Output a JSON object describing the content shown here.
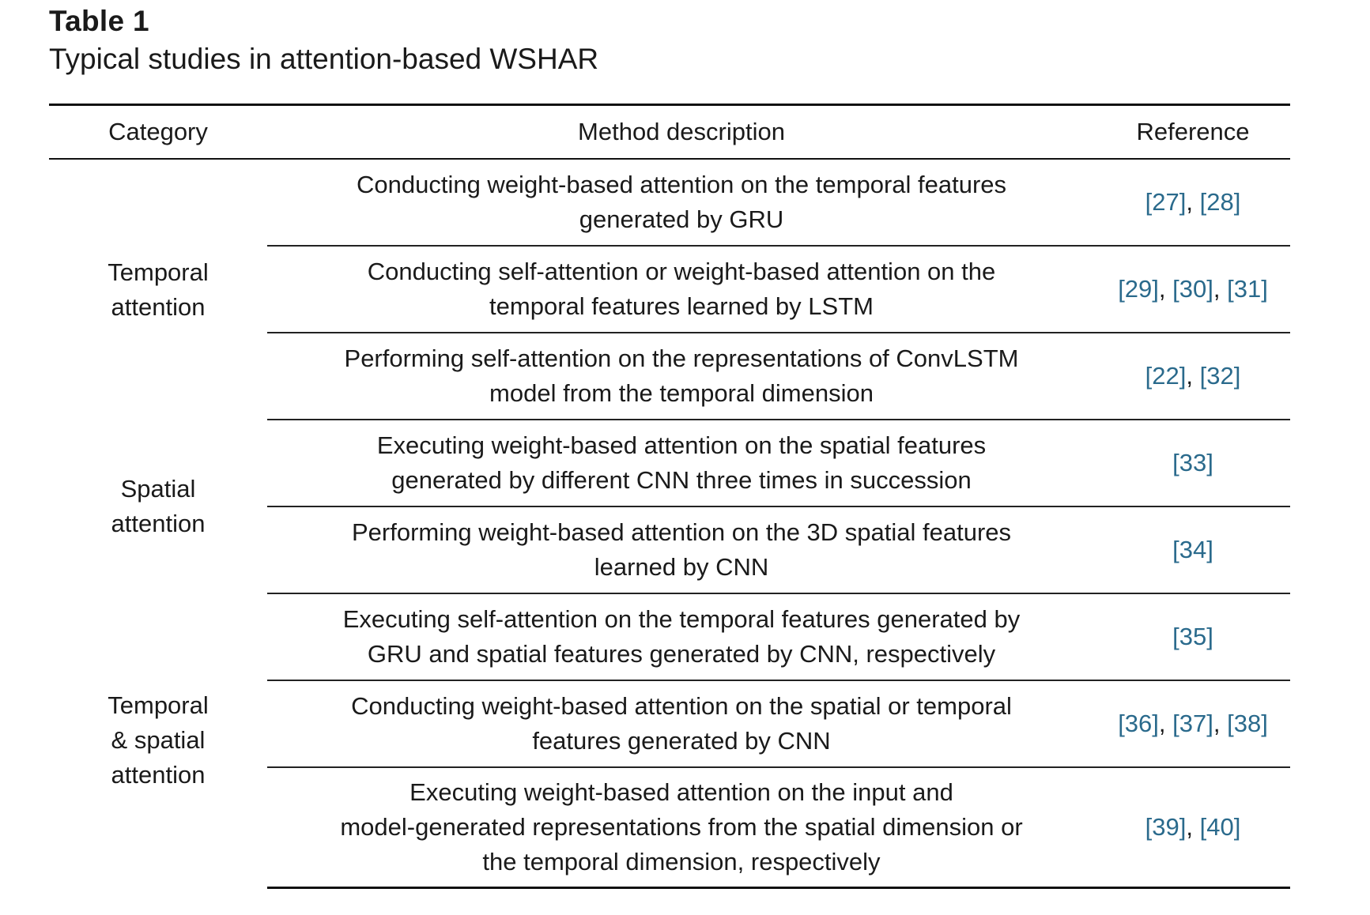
{
  "caption": {
    "label": "Table 1",
    "text": "Typical studies in attention-based WSHAR"
  },
  "table": {
    "headers": [
      "Category",
      "Method description",
      "Reference"
    ],
    "groups": [
      {
        "category_lines": [
          "Temporal",
          "attention"
        ],
        "rows": [
          {
            "desc_lines": [
              "Conducting weight-based attention on the temporal features",
              "generated by GRU"
            ],
            "refs": [
              "[27]",
              "[28]"
            ]
          },
          {
            "desc_lines": [
              "Conducting self-attention or weight-based attention on the",
              "temporal features learned by LSTM"
            ],
            "refs": [
              "[29]",
              "[30]",
              "[31]"
            ]
          },
          {
            "desc_lines": [
              "Performing self-attention on the representations of ConvLSTM",
              "model from the temporal dimension"
            ],
            "refs": [
              "[22]",
              "[32]"
            ]
          }
        ]
      },
      {
        "category_lines": [
          "Spatial",
          "attention"
        ],
        "rows": [
          {
            "desc_lines": [
              "Executing weight-based attention on the spatial features",
              "generated by different CNN three times in succession"
            ],
            "refs": [
              "[33]"
            ]
          },
          {
            "desc_lines": [
              "Performing weight-based attention on the 3D spatial features",
              "learned by CNN"
            ],
            "refs": [
              "[34]"
            ]
          }
        ]
      },
      {
        "category_lines": [
          "Temporal",
          "& spatial",
          "attention"
        ],
        "rows": [
          {
            "desc_lines": [
              "Executing self-attention on the temporal features generated by",
              "GRU and spatial features generated by CNN, respectively"
            ],
            "refs": [
              "[35]"
            ]
          },
          {
            "desc_lines": [
              "Conducting weight-based attention on the spatial or temporal",
              "features generated by CNN"
            ],
            "refs": [
              "[36]",
              "[37]",
              "[38]"
            ]
          },
          {
            "desc_lines": [
              "Executing weight-based attention on the input and",
              "model-generated representations from the spatial dimension or",
              "the temporal dimension, respectively"
            ],
            "refs": [
              "[39]",
              "[40]"
            ]
          }
        ]
      }
    ],
    "ref_separator": ", "
  },
  "colors": {
    "text": "#1a1a1a",
    "reference_link": "#2a6a8c",
    "rules": "#111111"
  }
}
